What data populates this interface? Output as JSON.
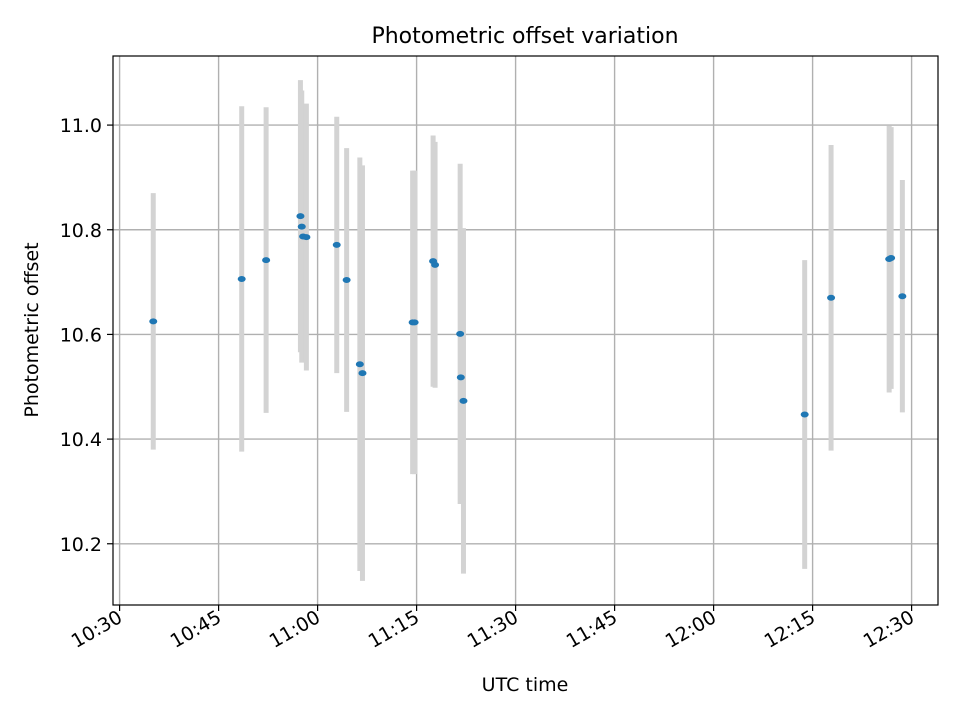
{
  "chart_data": {
    "type": "scatter",
    "title": "Photometric offset variation",
    "xlabel": "UTC time",
    "ylabel": "Photometric offset",
    "xlim": [
      "10:29",
      "12:34"
    ],
    "ylim": [
      10.083,
      11.132
    ],
    "x_ticks": [
      "10:30",
      "10:45",
      "11:00",
      "11:15",
      "11:30",
      "11:45",
      "12:00",
      "12:15",
      "12:30"
    ],
    "y_ticks": [
      10.2,
      10.4,
      10.6,
      10.8,
      11.0
    ],
    "y_tick_labels": [
      "10.2",
      "10.4",
      "10.6",
      "10.8",
      "11.0"
    ],
    "grid": true,
    "colors": {
      "marker": "#1f77b4",
      "errorbar": "#d3d3d3",
      "grid": "#b0b0b0"
    },
    "series": [
      {
        "points": [
          {
            "x": "10:35:06",
            "y": 10.625,
            "yerr": 0.245
          },
          {
            "x": "10:48:30",
            "y": 10.706,
            "yerr": 0.33
          },
          {
            "x": "10:52:12",
            "y": 10.742,
            "yerr": 0.292
          },
          {
            "x": "10:57:24",
            "y": 10.826,
            "yerr": 0.26
          },
          {
            "x": "10:57:36",
            "y": 10.806,
            "yerr": 0.26
          },
          {
            "x": "10:57:48",
            "y": 10.787,
            "yerr": 0.235
          },
          {
            "x": "10:58:18",
            "y": 10.786,
            "yerr": 0.255
          },
          {
            "x": "11:02:54",
            "y": 10.771,
            "yerr": 0.245
          },
          {
            "x": "11:04:24",
            "y": 10.704,
            "yerr": 0.252
          },
          {
            "x": "11:06:24",
            "y": 10.543,
            "yerr": 0.395
          },
          {
            "x": "11:06:48",
            "y": 10.526,
            "yerr": 0.397
          },
          {
            "x": "11:14:24",
            "y": 10.623,
            "yerr": 0.29
          },
          {
            "x": "11:14:42",
            "y": 10.623,
            "yerr": 0.29
          },
          {
            "x": "11:17:30",
            "y": 10.74,
            "yerr": 0.24
          },
          {
            "x": "11:17:48",
            "y": 10.733,
            "yerr": 0.235
          },
          {
            "x": "11:21:36",
            "y": 10.601,
            "yerr": 0.325
          },
          {
            "x": "11:21:42",
            "y": 10.518,
            "yerr": 0.24
          },
          {
            "x": "11:22:06",
            "y": 10.473,
            "yerr": 0.33
          },
          {
            "x": "12:13:48",
            "y": 10.447,
            "yerr": 0.295
          },
          {
            "x": "12:17:48",
            "y": 10.67,
            "yerr": 0.292
          },
          {
            "x": "12:26:36",
            "y": 10.744,
            "yerr": 0.255
          },
          {
            "x": "12:26:54",
            "y": 10.746,
            "yerr": 0.25
          },
          {
            "x": "12:28:36",
            "y": 10.673,
            "yerr": 0.222
          }
        ]
      }
    ]
  }
}
